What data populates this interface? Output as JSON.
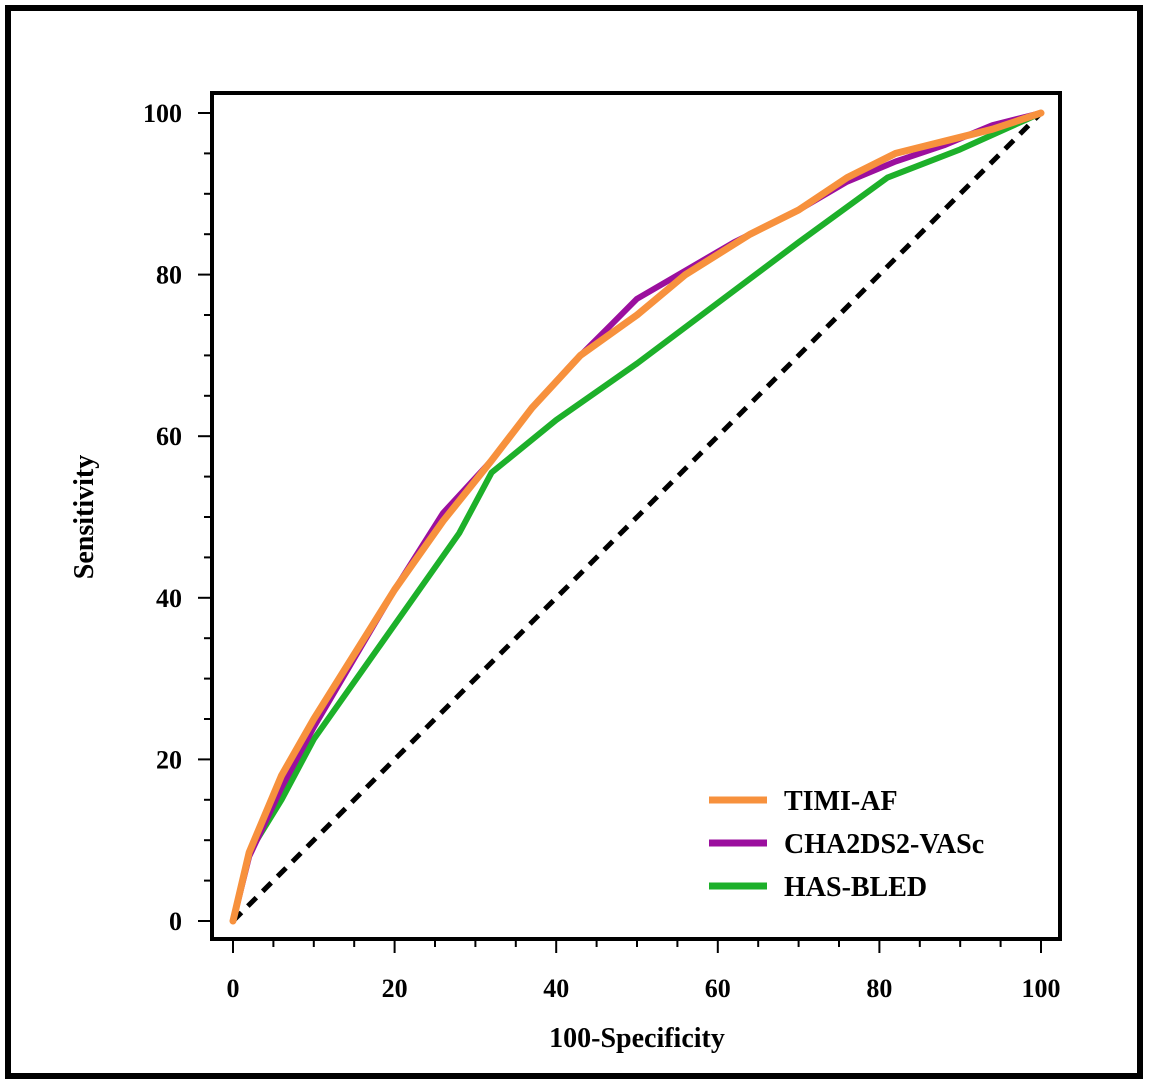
{
  "chart_data": {
    "type": "line",
    "title": "",
    "xlabel": "100-Specificity",
    "ylabel": "Sensitivity",
    "xlim": [
      0,
      100
    ],
    "ylim": [
      0,
      100
    ],
    "x_ticks": [
      0,
      20,
      40,
      60,
      80,
      100
    ],
    "y_ticks": [
      0,
      20,
      40,
      60,
      80,
      100
    ],
    "x_tick_labels": [
      "0",
      "20",
      "40",
      "60",
      "80",
      "100"
    ],
    "y_tick_labels": [
      "0",
      "20",
      "40",
      "60",
      "80",
      "100"
    ],
    "grid": false,
    "legend_position": "bottom-right",
    "reference_line": {
      "style": "dashed",
      "color": "#000000",
      "points": [
        [
          0,
          0
        ],
        [
          100,
          100
        ]
      ]
    },
    "series": [
      {
        "name": "TIMI-AF",
        "color": "#F7913D",
        "points": [
          [
            0,
            0
          ],
          [
            2,
            8.5
          ],
          [
            6,
            18
          ],
          [
            10,
            25
          ],
          [
            15,
            33
          ],
          [
            20,
            41
          ],
          [
            26,
            49.5
          ],
          [
            32,
            57
          ],
          [
            37,
            63.5
          ],
          [
            43,
            70
          ],
          [
            50,
            75
          ],
          [
            56,
            80
          ],
          [
            64,
            85
          ],
          [
            70,
            88
          ],
          [
            76,
            92
          ],
          [
            82,
            95
          ],
          [
            88,
            96.5
          ],
          [
            94,
            98
          ],
          [
            100,
            100
          ]
        ]
      },
      {
        "name": "CHA2DS2-VASc",
        "color": "#9B0F9E",
        "points": [
          [
            0,
            0
          ],
          [
            2,
            8
          ],
          [
            6,
            16.5
          ],
          [
            10,
            24
          ],
          [
            15,
            32.5
          ],
          [
            20,
            41
          ],
          [
            26,
            50.5
          ],
          [
            32,
            57
          ],
          [
            37,
            63.5
          ],
          [
            42,
            69
          ],
          [
            47,
            74
          ],
          [
            50,
            77
          ],
          [
            56,
            80.5
          ],
          [
            62,
            84
          ],
          [
            70,
            88
          ],
          [
            76,
            91.5
          ],
          [
            82,
            94
          ],
          [
            88,
            96
          ],
          [
            94,
            98.5
          ],
          [
            100,
            100
          ]
        ]
      },
      {
        "name": "HAS-BLED",
        "color": "#1DB02A",
        "points": [
          [
            0,
            0
          ],
          [
            2,
            8.5
          ],
          [
            6,
            15
          ],
          [
            10,
            22.5
          ],
          [
            16,
            31
          ],
          [
            22,
            39.5
          ],
          [
            28,
            48
          ],
          [
            32,
            55.5
          ],
          [
            40,
            62
          ],
          [
            50,
            69
          ],
          [
            60,
            76.5
          ],
          [
            70,
            84
          ],
          [
            81,
            92
          ],
          [
            90,
            95.5
          ],
          [
            100,
            100
          ]
        ]
      }
    ]
  }
}
